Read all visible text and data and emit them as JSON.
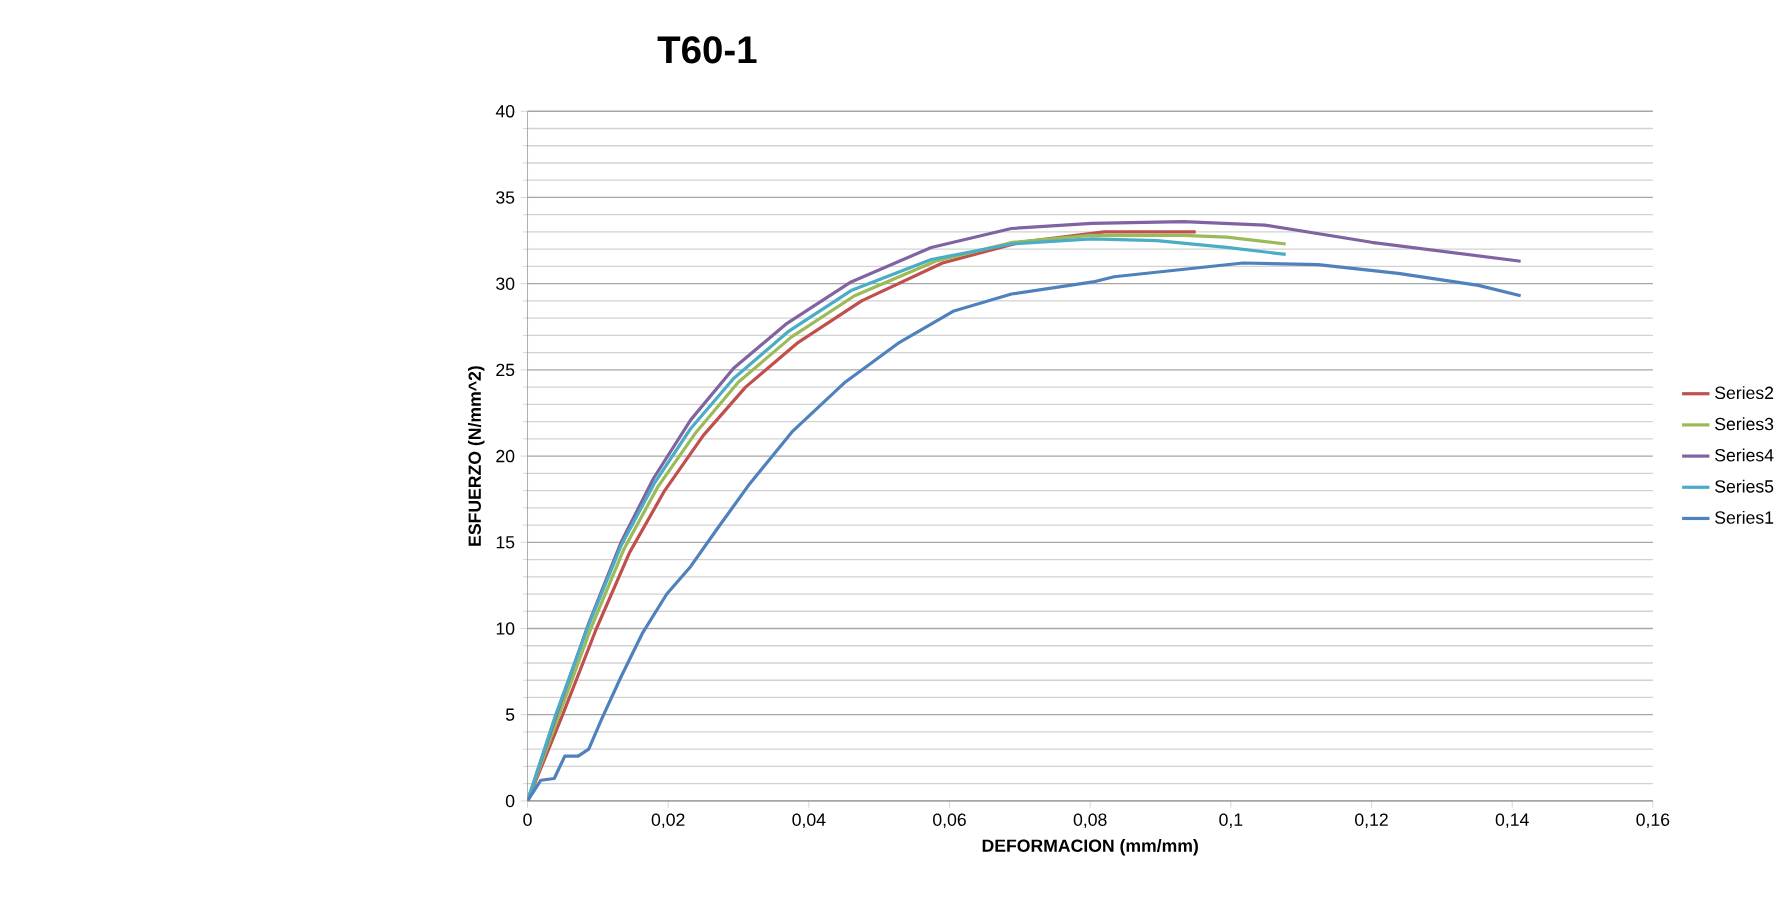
{
  "chart_data": {
    "type": "line",
    "title": "T60-1",
    "xlabel": "DEFORMACION (mm/mm)",
    "ylabel": "ESFUERZO (N/mm^2)",
    "xlim": [
      0,
      0.16
    ],
    "ylim": [
      0,
      40
    ],
    "xticks": [
      0,
      {
        "value": 0.02,
        "label": "0,02"
      },
      {
        "value": 0.04,
        "label": "0,04"
      },
      {
        "value": 0.06,
        "label": "0,06"
      },
      {
        "value": 0.08,
        "label": "0,08"
      },
      {
        "value": 0.1,
        "label": "0,1"
      },
      {
        "value": 0.12,
        "label": "0,12"
      },
      {
        "value": 0.14,
        "label": "0,14"
      },
      {
        "value": 0.16,
        "label": "0,16"
      }
    ],
    "yticks": [
      0,
      5,
      10,
      15,
      20,
      25,
      30,
      35,
      40
    ],
    "grid": "y",
    "legend": "right",
    "marker": "none",
    "line_style": "solid",
    "series": [
      {
        "name": "Series2",
        "color": "#c0504d",
        "x": [
          0,
          0.005,
          0.0098,
          0.0145,
          0.0195,
          0.025,
          0.031,
          0.0385,
          0.0475,
          0.059,
          0.07,
          0.082,
          0.095
        ],
        "values": [
          0,
          5.0,
          10.0,
          14.4,
          18.0,
          21.2,
          24.0,
          26.6,
          29.0,
          31.2,
          32.4,
          33.0,
          33.0
        ]
      },
      {
        "name": "Series3",
        "color": "#9bbb59",
        "x": [
          0,
          0.0045,
          0.009,
          0.0137,
          0.0185,
          0.024,
          0.03,
          0.0375,
          0.0465,
          0.058,
          0.069,
          0.08,
          0.0933,
          0.0994,
          0.1078
        ],
        "values": [
          0,
          5.0,
          10.0,
          14.6,
          18.2,
          21.4,
          24.3,
          26.9,
          29.3,
          31.3,
          32.4,
          32.8,
          32.8,
          32.7,
          32.3
        ]
      },
      {
        "name": "Series4",
        "color": "#8064a2",
        "x": [
          0,
          0.0042,
          0.0087,
          0.0133,
          0.0179,
          0.0232,
          0.0293,
          0.0369,
          0.046,
          0.0574,
          0.0688,
          0.0802,
          0.0933,
          0.1048,
          0.12,
          0.1412
        ],
        "values": [
          0,
          5.1,
          10.3,
          15.0,
          18.7,
          22.1,
          25.1,
          27.7,
          30.1,
          32.1,
          33.2,
          33.5,
          33.6,
          33.4,
          32.4,
          31.3
        ]
      },
      {
        "name": "Series5",
        "color": "#4bacc6",
        "x": [
          0,
          0.004,
          0.0087,
          0.0133,
          0.018,
          0.0232,
          0.0293,
          0.037,
          0.046,
          0.0574,
          0.0688,
          0.0802,
          0.0895,
          0.0994,
          0.1078
        ],
        "values": [
          0,
          5.0,
          10.2,
          14.8,
          18.4,
          21.6,
          24.5,
          27.2,
          29.6,
          31.4,
          32.3,
          32.6,
          32.5,
          32.1,
          31.7
        ]
      },
      {
        "name": "Series1",
        "color": "#4f81bd",
        "x": [
          0,
          0.0019,
          0.0038,
          0.0053,
          0.0072,
          0.0087,
          0.0106,
          0.0133,
          0.0163,
          0.0198,
          0.0232,
          0.027,
          0.0316,
          0.0376,
          0.0452,
          0.0529,
          0.0605,
          0.0688,
          0.0804,
          0.0834,
          0.1017,
          0.1124,
          0.1238,
          0.1352,
          0.1412
        ],
        "values": [
          0,
          1.2,
          1.3,
          2.6,
          2.6,
          3.0,
          4.8,
          7.2,
          9.7,
          12.0,
          13.6,
          15.8,
          18.4,
          21.4,
          24.3,
          26.6,
          28.4,
          29.4,
          30.1,
          30.4,
          31.2,
          31.1,
          30.6,
          29.9,
          29.3
        ]
      }
    ]
  }
}
